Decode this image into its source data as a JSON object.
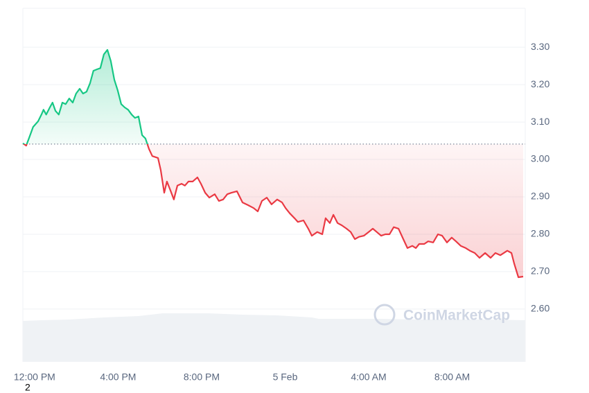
{
  "chart_data": {
    "type": "line",
    "x": [
      -0.56,
      -0.4,
      -0.27,
      -0.07,
      0.17,
      0.33,
      0.43,
      0.56,
      0.73,
      0.86,
      1.0,
      1.16,
      1.33,
      1.49,
      1.66,
      1.83,
      1.99,
      2.16,
      2.32,
      2.49,
      2.66,
      2.82,
      2.99,
      3.15,
      3.32,
      3.49,
      3.65,
      3.82,
      3.98,
      4.15,
      4.32,
      4.48,
      4.65,
      4.81,
      4.98,
      5.15,
      5.31,
      5.48,
      5.64,
      5.91,
      6.04,
      6.21,
      6.34,
      6.51,
      6.67,
      6.84,
      7.04,
      7.2,
      7.37,
      7.57,
      7.8,
      7.97,
      8.17,
      8.37,
      8.63,
      8.83,
      9.03,
      9.23,
      9.43,
      9.69,
      9.96,
      10.22,
      10.49,
      10.69,
      10.89,
      11.12,
      11.35,
      11.62,
      11.85,
      12.02,
      12.22,
      12.45,
      12.61,
      12.88,
      13.11,
      13.28,
      13.54,
      13.78,
      13.94,
      14.14,
      14.31,
      14.51,
      14.71,
      14.94,
      15.14,
      15.34,
      15.54,
      15.77,
      16.0,
      16.2,
      16.43,
      16.6,
      16.8,
      17.0,
      17.2,
      17.43,
      17.66,
      17.86,
      18.09,
      18.26,
      18.42,
      18.66,
      18.85,
      19.09,
      19.32,
      19.52,
      19.75,
      19.98,
      20.18,
      20.41,
      20.65,
      20.85,
      21.08,
      21.31,
      21.58,
      21.84,
      22.07,
      22.31,
      22.64,
      22.84,
      22.97,
      23.17,
      23.4
    ],
    "series": [
      {
        "values": [
          3.043,
          3.037,
          3.056,
          3.087,
          3.102,
          3.12,
          3.133,
          3.12,
          3.139,
          3.152,
          3.13,
          3.12,
          3.152,
          3.148,
          3.163,
          3.152,
          3.176,
          3.189,
          3.176,
          3.181,
          3.204,
          3.237,
          3.241,
          3.244,
          3.281,
          3.293,
          3.263,
          3.213,
          3.185,
          3.148,
          3.139,
          3.133,
          3.12,
          3.111,
          3.115,
          3.065,
          3.056,
          3.028,
          3.009,
          3.004,
          2.972,
          2.911,
          2.941,
          2.917,
          2.893,
          2.93,
          2.935,
          2.93,
          2.941,
          2.941,
          2.952,
          2.935,
          2.911,
          2.898,
          2.907,
          2.889,
          2.893,
          2.907,
          2.911,
          2.915,
          2.885,
          2.878,
          2.87,
          2.861,
          2.889,
          2.898,
          2.88,
          2.893,
          2.885,
          2.87,
          2.856,
          2.843,
          2.833,
          2.837,
          2.815,
          2.796,
          2.806,
          2.8,
          2.843,
          2.83,
          2.852,
          2.83,
          2.824,
          2.815,
          2.806,
          2.787,
          2.793,
          2.796,
          2.806,
          2.815,
          2.804,
          2.796,
          2.8,
          2.8,
          2.819,
          2.815,
          2.787,
          2.763,
          2.769,
          2.763,
          2.774,
          2.774,
          2.781,
          2.778,
          2.8,
          2.796,
          2.778,
          2.791,
          2.781,
          2.769,
          2.763,
          2.756,
          2.75,
          2.737,
          2.75,
          2.737,
          2.75,
          2.744,
          2.756,
          2.75,
          2.722,
          2.685,
          2.687
        ]
      }
    ],
    "baseline": 3.041,
    "colors": {
      "up": "#16c784",
      "down": "#ea3943"
    },
    "xlim": [
      -0.56,
      23.5
    ],
    "xticks": [
      {
        "value": 0,
        "label": "12:00 PM"
      },
      {
        "value": 4,
        "label": "4:00 PM"
      },
      {
        "value": 8,
        "label": "8:00 PM"
      },
      {
        "value": 12,
        "label": "5 Feb"
      },
      {
        "value": 16,
        "label": "4:00 AM"
      },
      {
        "value": 20,
        "label": "8:00 AM"
      }
    ],
    "ylim": [
      2.459,
      3.404
    ],
    "yticks": [
      {
        "value": 2.6,
        "label": "2.60"
      },
      {
        "value": 2.7,
        "label": "2.70"
      },
      {
        "value": 2.8,
        "label": "2.80"
      },
      {
        "value": 2.9,
        "label": "2.90"
      },
      {
        "value": 3.0,
        "label": "3.00"
      },
      {
        "value": 3.1,
        "label": "3.10"
      },
      {
        "value": 3.2,
        "label": "3.20"
      },
      {
        "value": 3.3,
        "label": "3.30"
      }
    ],
    "grid": true,
    "watermark": "CoinMarketCap",
    "footnote": "2"
  }
}
